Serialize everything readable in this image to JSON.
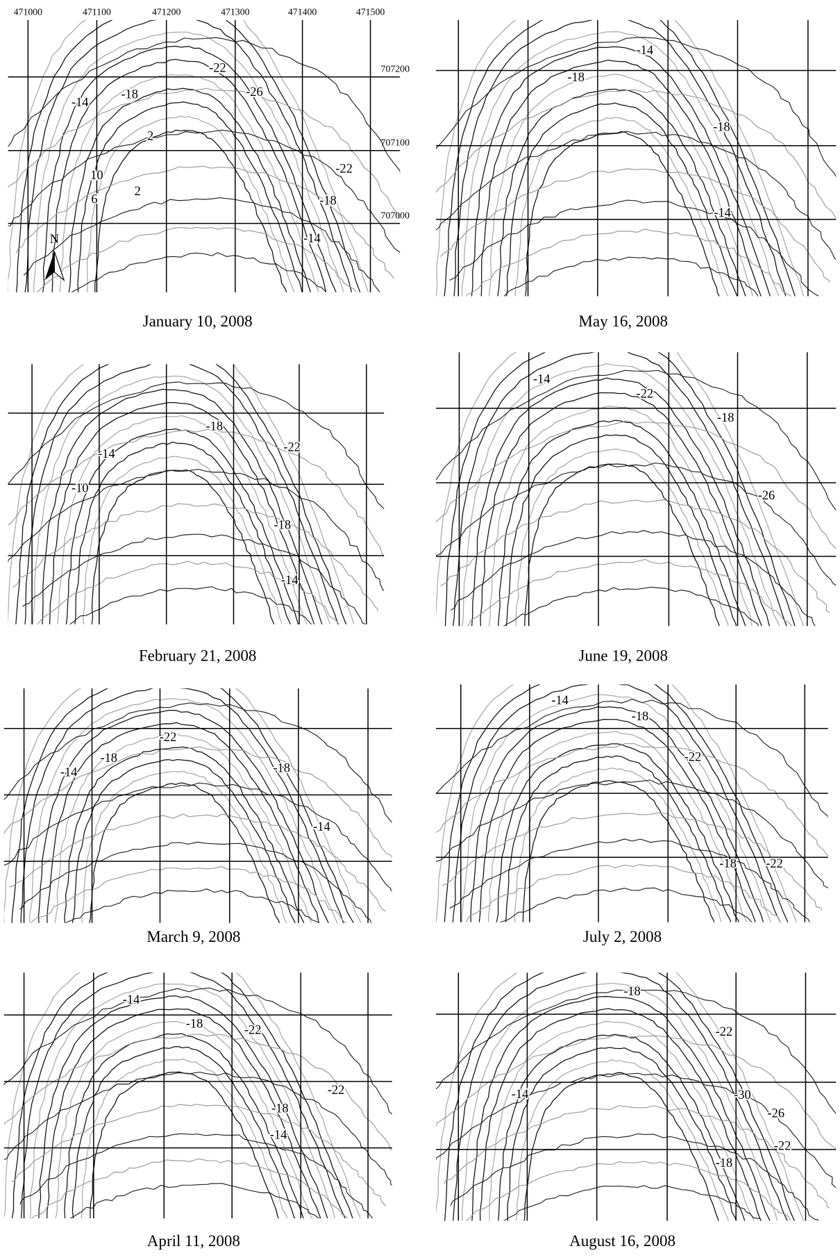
{
  "x_labels": [
    "471000",
    "471100",
    "471200",
    "471300",
    "471400",
    "471500"
  ],
  "y_labels": [
    "707200",
    "707100",
    "707000"
  ],
  "north_label": "N",
  "panels": [
    {
      "caption": "January 10, 2008",
      "contour_labels": [
        "-22",
        "-26",
        "-18",
        "-14",
        "2",
        "10",
        "6",
        "2",
        "-22",
        "-18",
        "-14"
      ]
    },
    {
      "caption": "May 16, 2008",
      "contour_labels": [
        "-14",
        "-18",
        "-18",
        "-14"
      ]
    },
    {
      "caption": "February 21, 2008",
      "contour_labels": [
        "-18",
        "-22",
        "-14",
        "-10",
        "-18",
        "-14"
      ]
    },
    {
      "caption": "June 19, 2008",
      "contour_labels": [
        "-14",
        "-22",
        "-18",
        "-26"
      ]
    },
    {
      "caption": "March 9, 2008",
      "contour_labels": [
        "-22",
        "-18",
        "-14",
        "-18",
        "-14"
      ]
    },
    {
      "caption": "July 2, 2008",
      "contour_labels": [
        "-14",
        "-18",
        "-22",
        "-18",
        "-22"
      ]
    },
    {
      "caption": "April 11, 2008",
      "contour_labels": [
        "-14",
        "-18",
        "-22",
        "-22",
        "-18",
        "-14"
      ]
    },
    {
      "caption": "August 16, 2008",
      "contour_labels": [
        "-18",
        "-22",
        "-14",
        "-30",
        "-26",
        "-22",
        "-18"
      ]
    }
  ]
}
